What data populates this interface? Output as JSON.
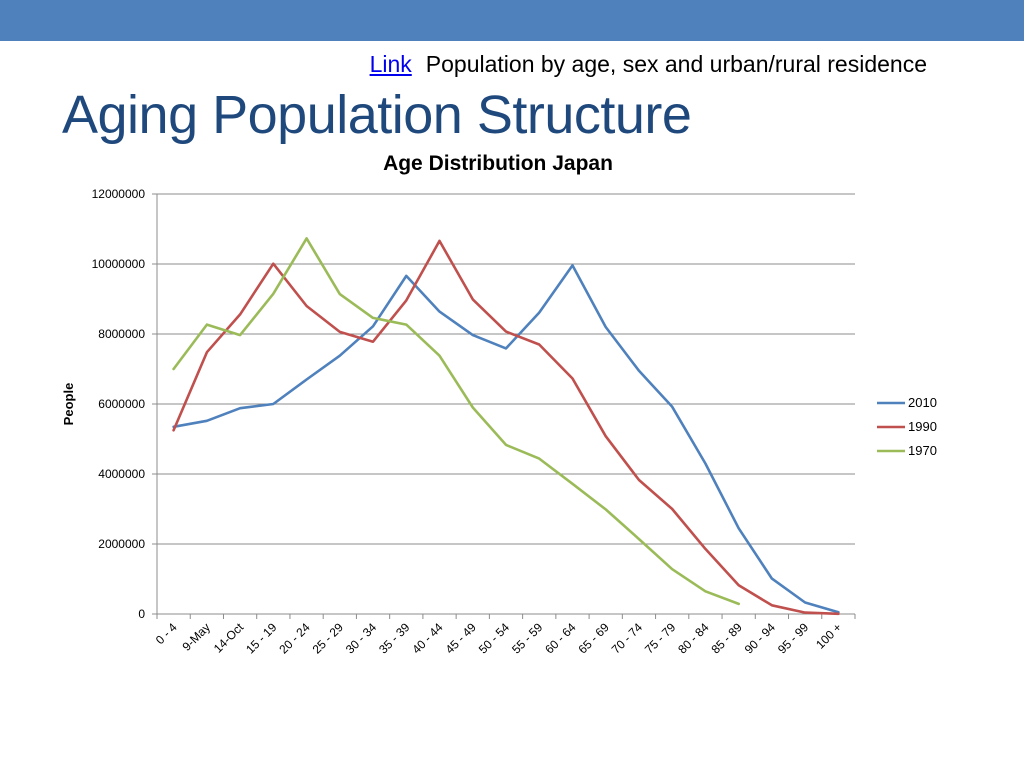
{
  "header": {
    "link_label": "Link",
    "subtitle": "Population by age, sex and urban/rural residence",
    "title": "Aging Population Structure"
  },
  "colors": {
    "bar": "#4f81bd",
    "title": "#1f497d",
    "link": "#0000ee"
  },
  "chart_data": {
    "type": "line",
    "title": "Age Distribution Japan",
    "xlabel": "",
    "ylabel": "People",
    "ylim": [
      0,
      12000000
    ],
    "yticks": [
      0,
      2000000,
      4000000,
      6000000,
      8000000,
      10000000,
      12000000
    ],
    "grid": true,
    "legend_position": "right",
    "categories": [
      "0 - 4",
      "9-May",
      "14-Oct",
      "15 - 19",
      "20 - 24",
      "25 - 29",
      "30 - 34",
      "35 - 39",
      "40 - 44",
      "45 - 49",
      "50 - 54",
      "55 - 59",
      "60 - 64",
      "65 - 69",
      "70 - 74",
      "75 - 79",
      "80 - 84",
      "85 - 89",
      "90 - 94",
      "95 - 99",
      "100 +"
    ],
    "series": [
      {
        "name": "2010",
        "color": "#4f81bd",
        "values": [
          5350000,
          5520000,
          5880000,
          6000000,
          6700000,
          7380000,
          8220000,
          9660000,
          8640000,
          7970000,
          7590000,
          8610000,
          9960000,
          8200000,
          6950000,
          5920000,
          4300000,
          2450000,
          1010000,
          330000,
          50000
        ]
      },
      {
        "name": "1990",
        "color": "#c0504d",
        "values": [
          5250000,
          7480000,
          8560000,
          10010000,
          8800000,
          8060000,
          7780000,
          8960000,
          10660000,
          8990000,
          8070000,
          7700000,
          6730000,
          5080000,
          3830000,
          3000000,
          1860000,
          820000,
          250000,
          40000,
          5000
        ]
      },
      {
        "name": "1970",
        "color": "#9bbb59",
        "values": [
          7000000,
          8270000,
          7970000,
          9150000,
          10730000,
          9140000,
          8460000,
          8270000,
          7380000,
          5900000,
          4830000,
          4440000,
          3720000,
          2990000,
          2140000,
          1280000,
          650000,
          290000,
          null,
          null,
          null
        ]
      }
    ]
  }
}
